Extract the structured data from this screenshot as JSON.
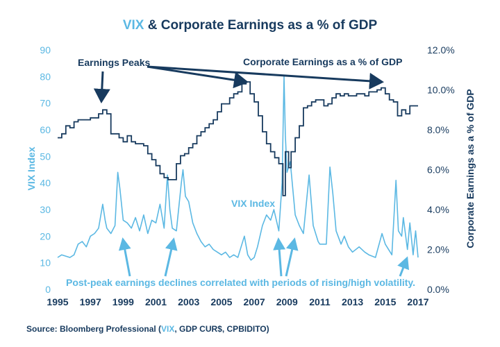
{
  "colors": {
    "vix": "#5bb8e3",
    "earnings": "#173a5e",
    "source_highlight": "#5bb8e3"
  },
  "title": {
    "part1": "VIX",
    "part2": " & Corporate Earnings as a % of GDP"
  },
  "source": {
    "prefix": "Source: Bloomberg Professional (",
    "highlight": "VIX",
    "suffix": ", GDP CUR$, CPBIDITO)"
  },
  "annotations": {
    "earnings_peaks": "Earnings Peaks",
    "earnings_series": "Corporate Earnings as a % of GDP",
    "vix_series": "VIX Index",
    "post_peak": "Post-peak earnings declines correlated with periods of rising/high volatility."
  },
  "chart_data": {
    "type": "line",
    "xlabel": "",
    "ylabel_left": "VIX Index",
    "ylabel_right": "Corporate Earnings as a % of GDP",
    "xlim": [
      1995,
      2017
    ],
    "ylim_left": [
      0,
      90
    ],
    "ylim_right": [
      0,
      12
    ],
    "x_ticks": [
      "1995",
      "1997",
      "1999",
      "2001",
      "2003",
      "2005",
      "2007",
      "2009",
      "2011",
      "2013",
      "2015",
      "2017"
    ],
    "y_left_ticks": [
      "0",
      "10",
      "20",
      "30",
      "40",
      "50",
      "60",
      "70",
      "80",
      "90"
    ],
    "y_right_ticks": [
      "0.0%",
      "2.0%",
      "4.0%",
      "6.0%",
      "8.0%",
      "10.0%",
      "12.0%"
    ],
    "grid": false,
    "series": [
      {
        "name": "VIX Index",
        "axis": "left",
        "step": false,
        "points": [
          [
            1995.0,
            12
          ],
          [
            1995.25,
            13
          ],
          [
            1995.5,
            12.5
          ],
          [
            1995.75,
            12
          ],
          [
            1996.0,
            13
          ],
          [
            1996.25,
            17
          ],
          [
            1996.5,
            18
          ],
          [
            1996.75,
            16
          ],
          [
            1997.0,
            20
          ],
          [
            1997.25,
            21
          ],
          [
            1997.5,
            23
          ],
          [
            1997.75,
            32
          ],
          [
            1997.9,
            26
          ],
          [
            1998.0,
            23
          ],
          [
            1998.25,
            21
          ],
          [
            1998.5,
            24
          ],
          [
            1998.67,
            44
          ],
          [
            1998.8,
            38
          ],
          [
            1999.0,
            26
          ],
          [
            1999.25,
            25
          ],
          [
            1999.5,
            23
          ],
          [
            1999.75,
            27
          ],
          [
            2000.0,
            22
          ],
          [
            2000.25,
            28
          ],
          [
            2000.5,
            21
          ],
          [
            2000.75,
            26
          ],
          [
            2001.0,
            25
          ],
          [
            2001.25,
            32
          ],
          [
            2001.5,
            23
          ],
          [
            2001.7,
            43
          ],
          [
            2001.85,
            30
          ],
          [
            2002.0,
            23
          ],
          [
            2002.25,
            22
          ],
          [
            2002.55,
            40
          ],
          [
            2002.65,
            45
          ],
          [
            2002.8,
            35
          ],
          [
            2003.0,
            33
          ],
          [
            2003.25,
            25
          ],
          [
            2003.5,
            21
          ],
          [
            2003.75,
            18
          ],
          [
            2004.0,
            16
          ],
          [
            2004.25,
            17
          ],
          [
            2004.5,
            15
          ],
          [
            2004.75,
            14
          ],
          [
            2005.0,
            13
          ],
          [
            2005.25,
            14
          ],
          [
            2005.5,
            12
          ],
          [
            2005.75,
            13
          ],
          [
            2006.0,
            12
          ],
          [
            2006.4,
            20
          ],
          [
            2006.6,
            13
          ],
          [
            2006.8,
            11
          ],
          [
            2007.0,
            12
          ],
          [
            2007.2,
            16
          ],
          [
            2007.5,
            24
          ],
          [
            2007.75,
            28
          ],
          [
            2008.0,
            26
          ],
          [
            2008.2,
            30
          ],
          [
            2008.5,
            22
          ],
          [
            2008.7,
            40
          ],
          [
            2008.82,
            80
          ],
          [
            2008.9,
            58
          ],
          [
            2009.0,
            44
          ],
          [
            2009.2,
            48
          ],
          [
            2009.5,
            28
          ],
          [
            2009.75,
            24
          ],
          [
            2010.0,
            21
          ],
          [
            2010.35,
            43
          ],
          [
            2010.6,
            24
          ],
          [
            2010.9,
            18
          ],
          [
            2011.0,
            17
          ],
          [
            2011.4,
            17
          ],
          [
            2011.62,
            46
          ],
          [
            2011.8,
            36
          ],
          [
            2012.0,
            22
          ],
          [
            2012.3,
            17
          ],
          [
            2012.5,
            20
          ],
          [
            2012.75,
            16
          ],
          [
            2013.0,
            14
          ],
          [
            2013.4,
            16
          ],
          [
            2013.75,
            14
          ],
          [
            2014.0,
            13
          ],
          [
            2014.4,
            12
          ],
          [
            2014.8,
            21
          ],
          [
            2015.0,
            17
          ],
          [
            2015.4,
            13
          ],
          [
            2015.65,
            41
          ],
          [
            2015.8,
            22
          ],
          [
            2016.0,
            20
          ],
          [
            2016.1,
            27
          ],
          [
            2016.35,
            15
          ],
          [
            2016.5,
            25
          ],
          [
            2016.7,
            13
          ],
          [
            2016.85,
            22
          ],
          [
            2017.0,
            12
          ]
        ]
      },
      {
        "name": "Corporate Earnings as a % of GDP",
        "axis": "right",
        "step": true,
        "points": [
          [
            1995.0,
            7.6
          ],
          [
            1995.25,
            7.8
          ],
          [
            1995.5,
            8.2
          ],
          [
            1995.75,
            8.1
          ],
          [
            1996.0,
            8.4
          ],
          [
            1996.25,
            8.5
          ],
          [
            1996.5,
            8.5
          ],
          [
            1996.75,
            8.5
          ],
          [
            1997.0,
            8.6
          ],
          [
            1997.25,
            8.6
          ],
          [
            1997.5,
            8.8
          ],
          [
            1997.75,
            9.0
          ],
          [
            1998.0,
            8.8
          ],
          [
            1998.25,
            7.8
          ],
          [
            1998.5,
            7.8
          ],
          [
            1998.75,
            7.6
          ],
          [
            1999.0,
            7.4
          ],
          [
            1999.25,
            7.7
          ],
          [
            1999.5,
            7.4
          ],
          [
            1999.75,
            7.3
          ],
          [
            2000.0,
            7.3
          ],
          [
            2000.25,
            7.2
          ],
          [
            2000.5,
            6.8
          ],
          [
            2000.75,
            6.5
          ],
          [
            2001.0,
            6.2
          ],
          [
            2001.25,
            5.8
          ],
          [
            2001.5,
            5.6
          ],
          [
            2001.75,
            5.5
          ],
          [
            2002.0,
            5.5
          ],
          [
            2002.25,
            6.3
          ],
          [
            2002.5,
            6.7
          ],
          [
            2002.75,
            6.8
          ],
          [
            2003.0,
            7.1
          ],
          [
            2003.25,
            7.3
          ],
          [
            2003.5,
            7.7
          ],
          [
            2003.75,
            7.9
          ],
          [
            2004.0,
            8.1
          ],
          [
            2004.25,
            8.3
          ],
          [
            2004.5,
            8.5
          ],
          [
            2004.75,
            8.9
          ],
          [
            2005.0,
            9.3
          ],
          [
            2005.25,
            9.3
          ],
          [
            2005.5,
            9.6
          ],
          [
            2005.75,
            9.8
          ],
          [
            2006.0,
            9.9
          ],
          [
            2006.25,
            10.3
          ],
          [
            2006.5,
            10.4
          ],
          [
            2006.75,
            9.8
          ],
          [
            2007.0,
            9.4
          ],
          [
            2007.25,
            8.7
          ],
          [
            2007.5,
            7.9
          ],
          [
            2007.75,
            7.3
          ],
          [
            2008.0,
            6.9
          ],
          [
            2008.25,
            6.6
          ],
          [
            2008.5,
            6.3
          ],
          [
            2008.75,
            4.7
          ],
          [
            2008.9,
            6.9
          ],
          [
            2009.1,
            6.1
          ],
          [
            2009.25,
            6.9
          ],
          [
            2009.5,
            7.6
          ],
          [
            2009.75,
            8.2
          ],
          [
            2010.0,
            9.1
          ],
          [
            2010.25,
            9.2
          ],
          [
            2010.5,
            9.4
          ],
          [
            2010.75,
            9.5
          ],
          [
            2011.0,
            9.5
          ],
          [
            2011.25,
            9.2
          ],
          [
            2011.5,
            9.3
          ],
          [
            2011.75,
            9.6
          ],
          [
            2012.0,
            9.8
          ],
          [
            2012.25,
            9.7
          ],
          [
            2012.5,
            9.8
          ],
          [
            2012.75,
            9.7
          ],
          [
            2013.0,
            9.7
          ],
          [
            2013.25,
            9.8
          ],
          [
            2013.5,
            9.8
          ],
          [
            2013.75,
            9.7
          ],
          [
            2014.0,
            9.9
          ],
          [
            2014.25,
            9.9
          ],
          [
            2014.5,
            10.0
          ],
          [
            2014.75,
            10.1
          ],
          [
            2015.0,
            9.8
          ],
          [
            2015.25,
            9.5
          ],
          [
            2015.5,
            9.4
          ],
          [
            2015.75,
            8.7
          ],
          [
            2016.0,
            9.0
          ],
          [
            2016.25,
            8.8
          ],
          [
            2016.5,
            9.2
          ],
          [
            2016.75,
            9.2
          ],
          [
            2017.0,
            9.2
          ]
        ]
      }
    ]
  }
}
